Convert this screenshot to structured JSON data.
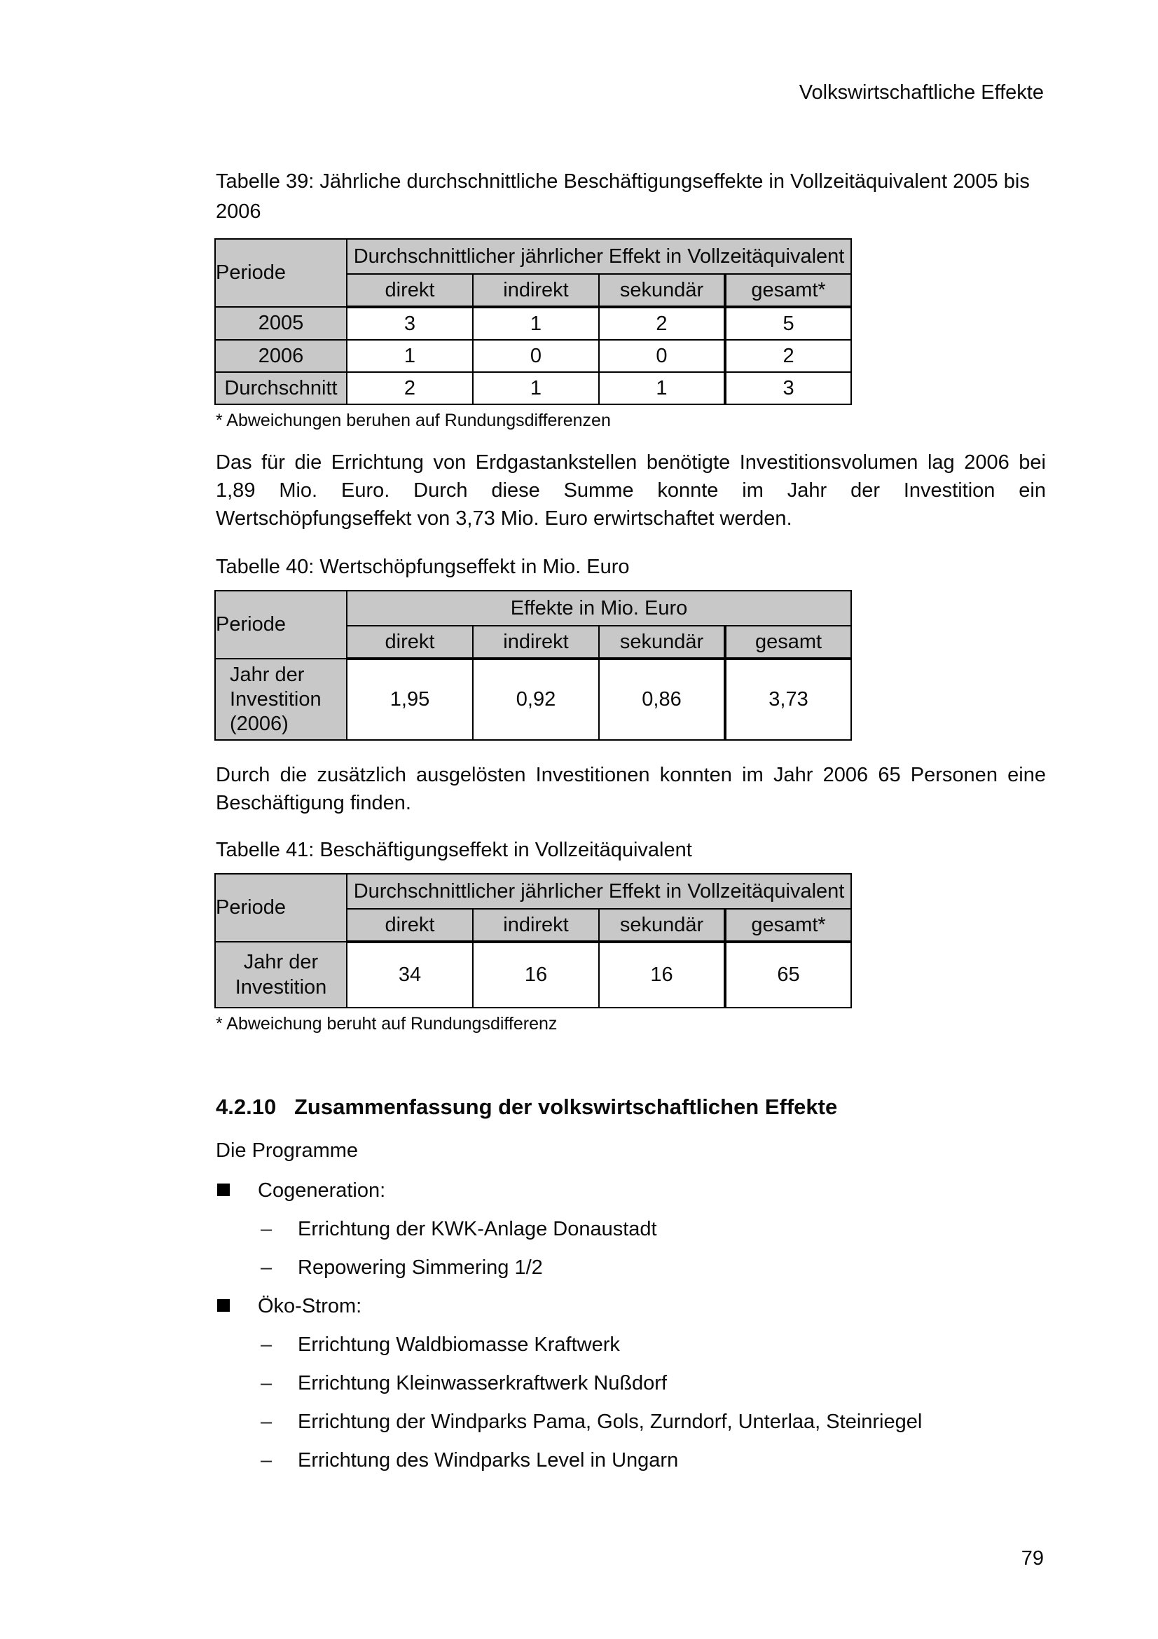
{
  "page": {
    "running_header": "Volkswirtschaftliche Effekte",
    "page_number": "79"
  },
  "colors": {
    "table_header_bg": "#c8c8c8",
    "table_border": "#000000",
    "text": "#0a0a0a",
    "background": "#ffffff"
  },
  "tables": [
    {
      "caption": "Tabelle 39: Jährliche durchschnittliche Beschäftigungseffekte in Vollzeitäquivalent 2005 bis 2006",
      "corner_header": "Periode",
      "group_header": "Durchschnittlicher jährlicher Effekt in Vollzeitäquivalent",
      "columns": [
        "direkt",
        "indirekt",
        "sekundär",
        "gesamt*"
      ],
      "rows": [
        {
          "label": "2005",
          "values": [
            "3",
            "1",
            "2",
            "5"
          ]
        },
        {
          "label": "2006",
          "values": [
            "1",
            "0",
            "0",
            "2"
          ]
        },
        {
          "label": "Durchschnitt",
          "values": [
            "2",
            "1",
            "1",
            "3"
          ]
        }
      ],
      "footnote": "* Abweichungen beruhen auf Rundungsdifferenzen"
    },
    {
      "caption": "Tabelle 40: Wertschöpfungseffekt in Mio. Euro",
      "corner_header": "Periode",
      "group_header": "Effekte in Mio. Euro",
      "columns": [
        "direkt",
        "indirekt",
        "sekundär",
        "gesamt"
      ],
      "rows": [
        {
          "label": "Jahr der Investition (2006)",
          "values": [
            "1,95",
            "0,92",
            "0,86",
            "3,73"
          ]
        }
      ],
      "footnote": ""
    },
    {
      "caption": "Tabelle 41: Beschäftigungseffekt in Vollzeitäquivalent",
      "corner_header": "Periode",
      "group_header": "Durchschnittlicher jährlicher Effekt in Vollzeitäquivalent",
      "columns": [
        "direkt",
        "indirekt",
        "sekundär",
        "gesamt*"
      ],
      "rows": [
        {
          "label": "Jahr der Investition",
          "values": [
            "34",
            "16",
            "16",
            "65"
          ]
        }
      ],
      "footnote": "* Abweichung beruht auf Rundungsdifferenz"
    }
  ],
  "paragraphs": {
    "p1": "Das für die Errichtung von Erdgastankstellen benötigte Investitionsvolumen lag 2006 bei 1,89 Mio. Euro. Durch diese Summe konnte im Jahr der Investition ein Wertschöpfungseffekt von 3,73 Mio. Euro erwirtschaftet werden.",
    "p2": "Durch die zusätzlich ausgelösten Investitionen konnten im Jahr 2006 65 Personen eine Beschäftigung finden."
  },
  "section": {
    "number": "4.2.10",
    "title": "Zusammenfassung der volkswirtschaftlichen Effekte",
    "intro": "Die Programme"
  },
  "program_list": [
    {
      "label": "Cogeneration:",
      "items": [
        "Errichtung der KWK-Anlage Donaustadt",
        "Repowering Simmering 1/2"
      ]
    },
    {
      "label": "Öko-Strom:",
      "items": [
        "Errichtung Waldbiomasse Kraftwerk",
        "Errichtung Kleinwasserkraftwerk Nußdorf",
        "Errichtung der Windparks Pama, Gols, Zurndorf, Unterlaa, Steinriegel",
        "Errichtung des Windparks Level in Ungarn"
      ]
    }
  ]
}
